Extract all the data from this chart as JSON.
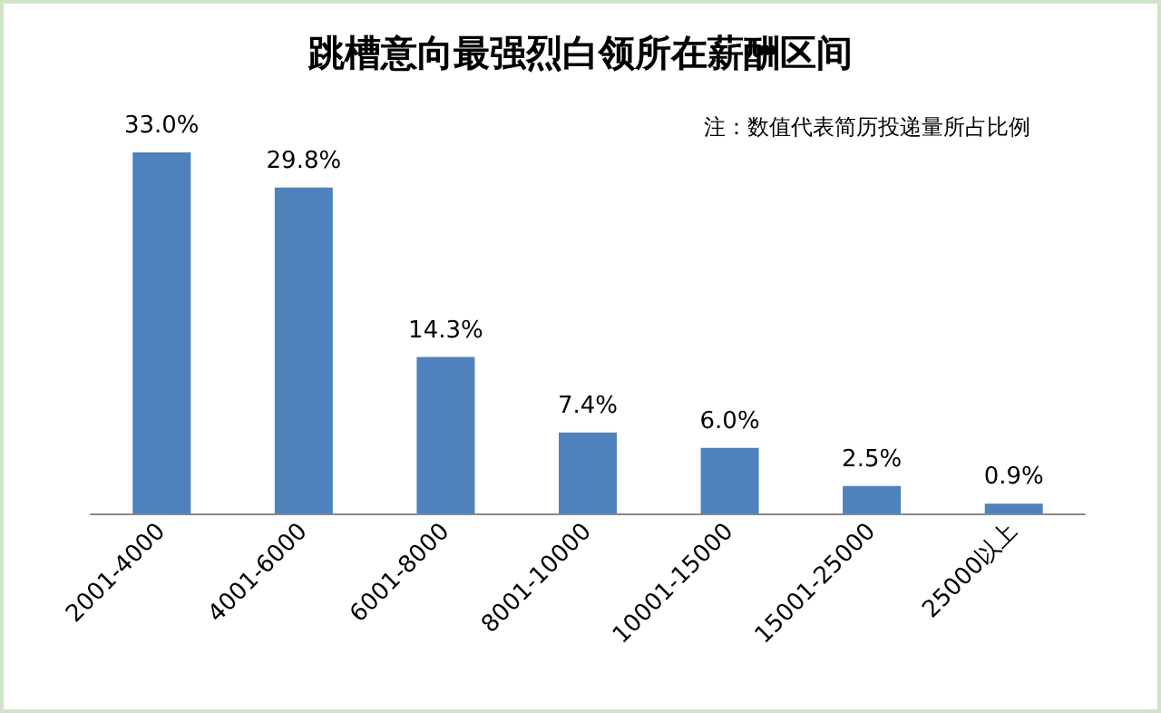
{
  "chart_data": {
    "type": "bar",
    "title": "跳槽意向最强烈白领所在薪酬区间",
    "annotations": [
      "注：数值代表简历投递量所占比例"
    ],
    "categories": [
      "2001-4000",
      "4001-6000",
      "6001-8000",
      "8001-10000",
      "10001-15000",
      "15001-25000",
      "25000以上"
    ],
    "values": [
      33.0,
      29.8,
      14.3,
      7.4,
      6.0,
      2.5,
      0.9
    ],
    "value_labels": [
      "33.0%",
      "29.8%",
      "14.3%",
      "7.4%",
      "6.0%",
      "2.5%",
      "0.9%"
    ],
    "color": "#4f81bd"
  }
}
